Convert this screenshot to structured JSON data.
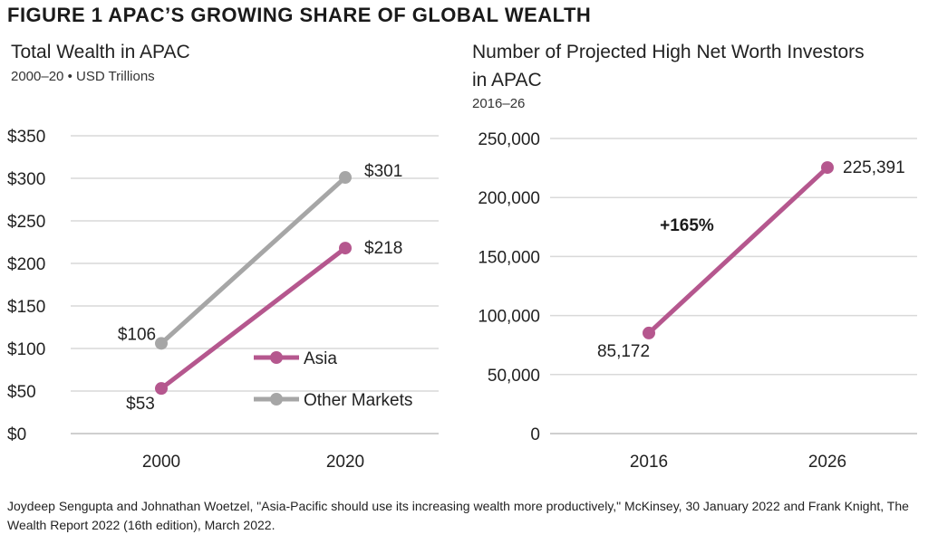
{
  "figure_title": "FIGURE 1  APAC’S GROWING SHARE OF GLOBAL WEALTH",
  "source": "Joydeep Sengupta and Johnathan Woetzel, \"Asia-Pacific should use its increasing wealth more productively,\" McKinsey, 30 January 2022 and Frank Knight, The Wealth Report 2022 (16th edition), March 2022.",
  "colors": {
    "asia": "#B5578E",
    "other": "#A6A6A6",
    "grid": "#D9D9D9"
  },
  "chart_data": [
    {
      "type": "line",
      "title": "Total Wealth in APAC",
      "subtitle": "2000–20 • USD Trillions",
      "categories": [
        "2000",
        "2020"
      ],
      "ylim": [
        0,
        350
      ],
      "yticks": [
        0,
        50,
        100,
        150,
        200,
        250,
        300,
        350
      ],
      "ytick_labels": [
        "$0",
        "$50",
        "$100",
        "$150",
        "$200",
        "$250",
        "$300",
        "$350"
      ],
      "grid": true,
      "legend_position": "bottom-right",
      "series": [
        {
          "name": "Asia",
          "values": [
            53,
            218
          ],
          "labels": [
            "$53",
            "$218"
          ]
        },
        {
          "name": "Other Markets",
          "values": [
            106,
            301
          ],
          "labels": [
            "$106",
            "$301"
          ]
        }
      ]
    },
    {
      "type": "line",
      "title": "Number of Projected High Net Worth Investors in APAC",
      "subtitle": "2016–26",
      "categories": [
        "2016",
        "2026"
      ],
      "ylim": [
        0,
        250000
      ],
      "yticks": [
        0,
        50000,
        100000,
        150000,
        200000,
        250000
      ],
      "ytick_labels": [
        "0",
        "50,000",
        "100,000",
        "150,000",
        "200,000",
        "250,000"
      ],
      "grid": true,
      "annotation": "+165%",
      "series": [
        {
          "values": [
            85172,
            225391
          ],
          "labels": [
            "85,172",
            "225,391"
          ]
        }
      ]
    }
  ]
}
